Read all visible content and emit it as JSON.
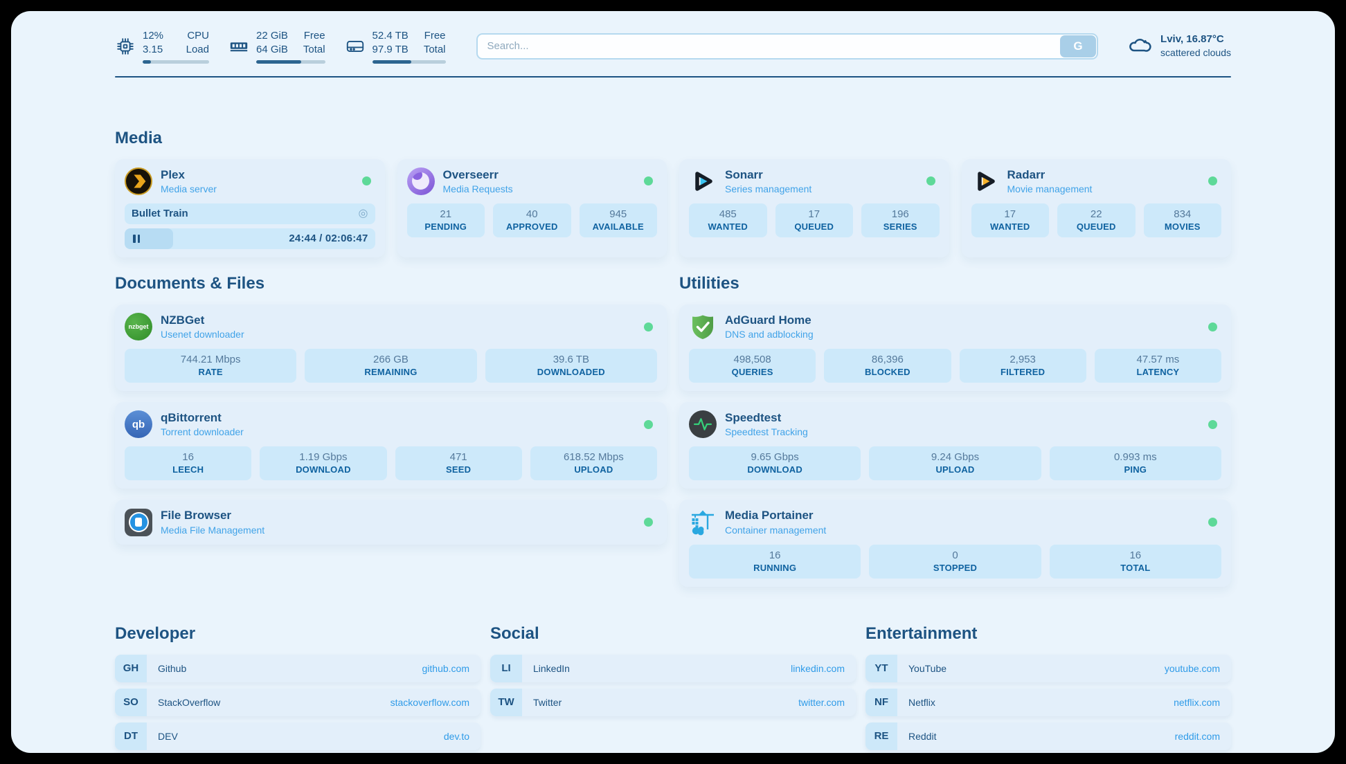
{
  "colors": {
    "accent_navy": "#1d5382",
    "subtitle_blue": "#41a3e8",
    "link_blue": "#2f9be8",
    "status_green": "#5ed998",
    "card_bg": "#e3effa",
    "chip_bg": "#cde9fa"
  },
  "header": {
    "monitors": [
      {
        "icon": "cpu-icon",
        "value_top": "12%",
        "value_bottom": "3.15",
        "label_top": "CPU",
        "label_bottom": "Load",
        "progress_pct": 12
      },
      {
        "icon": "ram-icon",
        "value_top": "22 GiB",
        "value_bottom": "64 GiB",
        "label_top": "Free",
        "label_bottom": "Total",
        "progress_pct": 65
      },
      {
        "icon": "disk-icon",
        "value_top": "52.4 TB",
        "value_bottom": "97.9 TB",
        "label_top": "Free",
        "label_bottom": "Total",
        "progress_pct": 53
      }
    ],
    "search": {
      "placeholder": "Search...",
      "button_label": "G"
    },
    "weather": {
      "icon": "cloud-icon",
      "location": "Lviv, 16.87°C",
      "condition": "scattered clouds"
    }
  },
  "sections": {
    "media": {
      "heading": "Media",
      "plex": {
        "name": "Plex",
        "desc": "Media server",
        "status": "online",
        "now_playing": {
          "title": "Bullet Train",
          "time": "24:44 / 02:06:47",
          "progress_pct": 19.5
        }
      },
      "overseerr": {
        "name": "Overseerr",
        "desc": "Media Requests",
        "status": "online",
        "stats": [
          {
            "value": "21",
            "label": "PENDING"
          },
          {
            "value": "40",
            "label": "APPROVED"
          },
          {
            "value": "945",
            "label": "AVAILABLE"
          }
        ]
      },
      "sonarr": {
        "name": "Sonarr",
        "desc": "Series management",
        "status": "online",
        "stats": [
          {
            "value": "485",
            "label": "WANTED"
          },
          {
            "value": "17",
            "label": "QUEUED"
          },
          {
            "value": "196",
            "label": "SERIES"
          }
        ]
      },
      "radarr": {
        "name": "Radarr",
        "desc": "Movie management",
        "status": "online",
        "stats": [
          {
            "value": "17",
            "label": "WANTED"
          },
          {
            "value": "22",
            "label": "QUEUED"
          },
          {
            "value": "834",
            "label": "MOVIES"
          }
        ]
      }
    },
    "documents": {
      "heading": "Documents & Files",
      "nzbget": {
        "name": "NZBGet",
        "desc": "Usenet downloader",
        "icon_text": "nzbget",
        "status": "online",
        "stats": [
          {
            "value": "744.21 Mbps",
            "label": "RATE"
          },
          {
            "value": "266 GB",
            "label": "REMAINING"
          },
          {
            "value": "39.6 TB",
            "label": "DOWNLOADED"
          }
        ]
      },
      "qbittorrent": {
        "name": "qBittorrent",
        "desc": "Torrent downloader",
        "icon_text": "qb",
        "status": "online",
        "stats": [
          {
            "value": "16",
            "label": "LEECH"
          },
          {
            "value": "1.19 Gbps",
            "label": "DOWNLOAD"
          },
          {
            "value": "471",
            "label": "SEED"
          },
          {
            "value": "618.52 Mbps",
            "label": "UPLOAD"
          }
        ]
      },
      "filebrowser": {
        "name": "File Browser",
        "desc": "Media File Management",
        "status": "online"
      }
    },
    "utilities": {
      "heading": "Utilities",
      "adguard": {
        "name": "AdGuard Home",
        "desc": "DNS and adblocking",
        "status": "online",
        "stats": [
          {
            "value": "498,508",
            "label": "QUERIES"
          },
          {
            "value": "86,396",
            "label": "BLOCKED"
          },
          {
            "value": "2,953",
            "label": "FILTERED"
          },
          {
            "value": "47.57 ms",
            "label": "LATENCY"
          }
        ]
      },
      "speedtest": {
        "name": "Speedtest",
        "desc": "Speedtest Tracking",
        "status": "online",
        "stats": [
          {
            "value": "9.65 Gbps",
            "label": "DOWNLOAD"
          },
          {
            "value": "9.24 Gbps",
            "label": "UPLOAD"
          },
          {
            "value": "0.993 ms",
            "label": "PING"
          }
        ]
      },
      "portainer": {
        "name": "Media Portainer",
        "desc": "Container management",
        "status": "online",
        "stats": [
          {
            "value": "16",
            "label": "RUNNING"
          },
          {
            "value": "0",
            "label": "STOPPED"
          },
          {
            "value": "16",
            "label": "TOTAL"
          }
        ]
      }
    }
  },
  "link_sections": [
    {
      "heading": "Developer",
      "items": [
        {
          "abbr": "GH",
          "name": "Github",
          "url": "github.com"
        },
        {
          "abbr": "SO",
          "name": "StackOverflow",
          "url": "stackoverflow.com"
        },
        {
          "abbr": "DT",
          "name": "DEV",
          "url": "dev.to"
        }
      ]
    },
    {
      "heading": "Social",
      "items": [
        {
          "abbr": "LI",
          "name": "LinkedIn",
          "url": "linkedin.com"
        },
        {
          "abbr": "TW",
          "name": "Twitter",
          "url": "twitter.com"
        }
      ]
    },
    {
      "heading": "Entertainment",
      "items": [
        {
          "abbr": "YT",
          "name": "YouTube",
          "url": "youtube.com"
        },
        {
          "abbr": "NF",
          "name": "Netflix",
          "url": "netflix.com"
        },
        {
          "abbr": "RE",
          "name": "Reddit",
          "url": "reddit.com"
        }
      ]
    }
  ]
}
